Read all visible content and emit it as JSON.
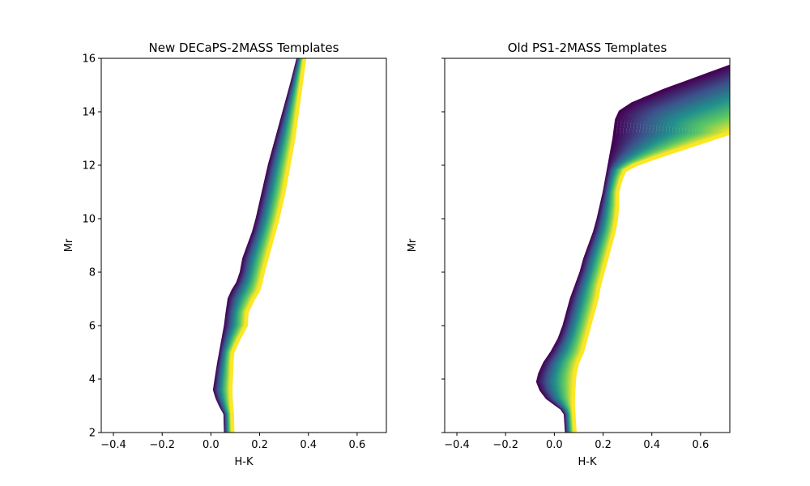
{
  "chart_data": [
    {
      "type": "area",
      "title": "New DECaPS-2MASS Templates",
      "xlabel": "H-K",
      "ylabel": "Mr",
      "xlim": [
        -0.45,
        0.72
      ],
      "ylim": [
        2,
        16
      ],
      "xticks": [
        -0.4,
        -0.2,
        0.0,
        0.2,
        0.4,
        0.6
      ],
      "xtick_labels": [
        "−0.4",
        "−0.2",
        "0.0",
        "0.2",
        "0.4",
        "0.6"
      ],
      "yticks": [
        2,
        4,
        6,
        8,
        10,
        12,
        14,
        16
      ],
      "ytick_labels": [
        "2",
        "4",
        "6",
        "8",
        "10",
        "12",
        "14",
        "16"
      ],
      "show_ytick_labels": true,
      "grid": false,
      "colormap": [
        "#440154",
        "#3b528b",
        "#21918c",
        "#5ec962",
        "#fde725"
      ],
      "series": [
        {
          "y": [
            2.0,
            2.7,
            3.0,
            3.3,
            3.6,
            3.9,
            4.2,
            4.6,
            5.0,
            5.5,
            6.0,
            6.5,
            7.0,
            7.3,
            7.6,
            8.0,
            8.5,
            9.0,
            9.5,
            10.0,
            11.0,
            12.0,
            13.0,
            14.0,
            15.0,
            16.0
          ],
          "x": [
            0.06,
            0.058,
            0.04,
            0.025,
            0.015,
            0.02,
            0.025,
            0.032,
            0.04,
            0.05,
            0.06,
            0.067,
            0.075,
            0.09,
            0.11,
            0.125,
            0.135,
            0.155,
            0.175,
            0.19,
            0.215,
            0.24,
            0.27,
            0.3,
            0.33,
            0.358
          ]
        },
        {
          "y": [
            2.0,
            2.7,
            3.0,
            3.3,
            3.6,
            3.9,
            4.2,
            4.6,
            5.0,
            5.5,
            6.0,
            6.5,
            7.0,
            7.3,
            7.6,
            8.0,
            8.5,
            9.0,
            9.5,
            10.0,
            11.0,
            12.0,
            13.0,
            14.0,
            15.0,
            16.0
          ],
          "x": [
            0.09,
            0.088,
            0.085,
            0.083,
            0.082,
            0.083,
            0.085,
            0.086,
            0.09,
            0.115,
            0.145,
            0.148,
            0.175,
            0.195,
            0.205,
            0.215,
            0.23,
            0.245,
            0.26,
            0.275,
            0.3,
            0.32,
            0.34,
            0.355,
            0.37,
            0.385
          ]
        }
      ]
    },
    {
      "type": "area",
      "title": "Old PS1-2MASS Templates",
      "xlabel": "H-K",
      "ylabel": "Mr",
      "xlim": [
        -0.45,
        0.72
      ],
      "ylim": [
        2,
        16
      ],
      "xticks": [
        -0.4,
        -0.2,
        0.0,
        0.2,
        0.4,
        0.6
      ],
      "xtick_labels": [
        "−0.4",
        "−0.2",
        "0.0",
        "0.2",
        "0.4",
        "0.6"
      ],
      "yticks": [
        2,
        4,
        6,
        8,
        10,
        12,
        14,
        16
      ],
      "ytick_labels": [
        "2",
        "4",
        "6",
        "8",
        "10",
        "12",
        "14",
        "16"
      ],
      "show_ytick_labels": false,
      "grid": false,
      "colormap": [
        "#440154",
        "#3b528b",
        "#21918c",
        "#5ec962",
        "#fde725"
      ],
      "series": [
        {
          "y": [
            2.0,
            2.7,
            2.9,
            3.1,
            3.3,
            3.6,
            3.9,
            4.2,
            4.6,
            5.0,
            5.5,
            6.0,
            6.5,
            7.0,
            7.5,
            8.0,
            8.5,
            9.0,
            9.5,
            10.0,
            11.0,
            12.0,
            13.0,
            13.7,
            14.0,
            14.3,
            14.8,
            15.3,
            15.7
          ],
          "x": [
            0.05,
            0.045,
            0.03,
            0.0,
            -0.03,
            -0.055,
            -0.068,
            -0.06,
            -0.04,
            -0.01,
            0.02,
            0.04,
            0.055,
            0.07,
            0.09,
            0.11,
            0.125,
            0.145,
            0.165,
            0.18,
            0.205,
            0.225,
            0.245,
            0.255,
            0.27,
            0.32,
            0.45,
            0.6,
            0.72
          ]
        },
        {
          "y": [
            2.0,
            2.7,
            3.0,
            3.3,
            3.6,
            3.9,
            4.2,
            4.6,
            5.0,
            5.5,
            6.0,
            6.5,
            7.0,
            7.5,
            8.0,
            8.5,
            9.0,
            9.5,
            10.0,
            10.5,
            11.0,
            11.5,
            11.8,
            12.0,
            12.3,
            12.6,
            13.2
          ],
          "x": [
            0.085,
            0.08,
            0.078,
            0.078,
            0.08,
            0.082,
            0.085,
            0.095,
            0.115,
            0.13,
            0.145,
            0.16,
            0.175,
            0.185,
            0.2,
            0.215,
            0.23,
            0.245,
            0.255,
            0.26,
            0.26,
            0.275,
            0.29,
            0.33,
            0.42,
            0.52,
            0.72
          ]
        }
      ]
    }
  ]
}
